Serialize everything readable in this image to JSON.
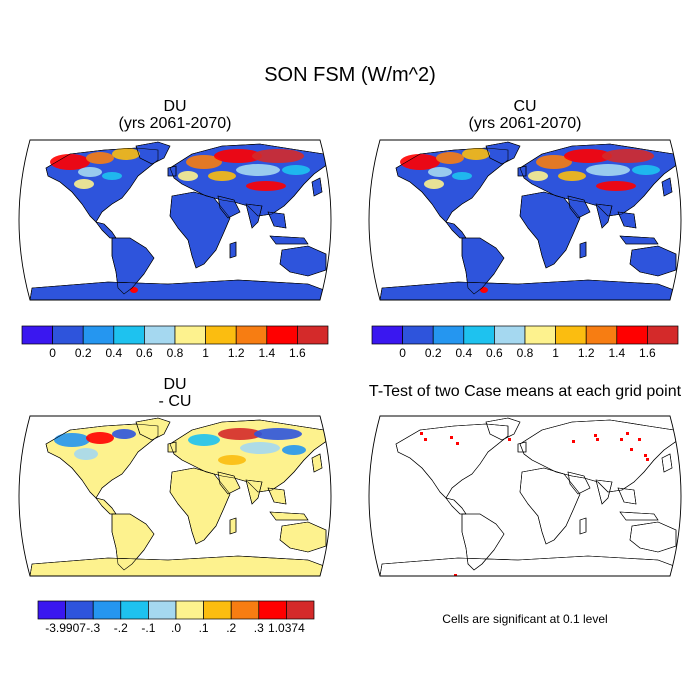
{
  "figure_title": "SON FSM (W/m^2)",
  "panels": [
    {
      "id": "du",
      "title_line1": "DU",
      "title_line2": "(yrs 2061-2070)"
    },
    {
      "id": "cu",
      "title_line1": "CU",
      "title_line2": "(yrs 2061-2070)"
    },
    {
      "id": "diff",
      "title_line1": "DU",
      "title_line2": "- CU"
    },
    {
      "id": "ttest",
      "title_line1": "T-Test of two Case means at each grid point"
    }
  ],
  "colorbars": {
    "main": {
      "colors": [
        "#3a17f0",
        "#2e54dc",
        "#2596f0",
        "#1ec2ef",
        "#a5d8f0",
        "#fdf28e",
        "#fbbd10",
        "#f77d12",
        "#ff0000",
        "#d42a2a"
      ],
      "labels": [
        "0",
        "0.2",
        "0.4",
        "0.6",
        "0.8",
        "1",
        "1.2",
        "1.4",
        "1.6"
      ]
    },
    "diff": {
      "colors": [
        "#3a17f0",
        "#2e54dc",
        "#2596f0",
        "#1ec2ef",
        "#a5d8f0",
        "#fdf28e",
        "#fbbd10",
        "#f77d12",
        "#ff0000",
        "#d42a2a"
      ],
      "labels": [
        "-3.9907",
        "-.3",
        "-.2",
        "-.1",
        ".0",
        ".1",
        ".2",
        ".3",
        "1.0374"
      ]
    }
  },
  "significance_note": "Cells are significant at 0.1 level",
  "colors": {
    "land_low": "#2e54dc",
    "diff_fill": "#fdf28e",
    "significant": "#ff0000"
  }
}
